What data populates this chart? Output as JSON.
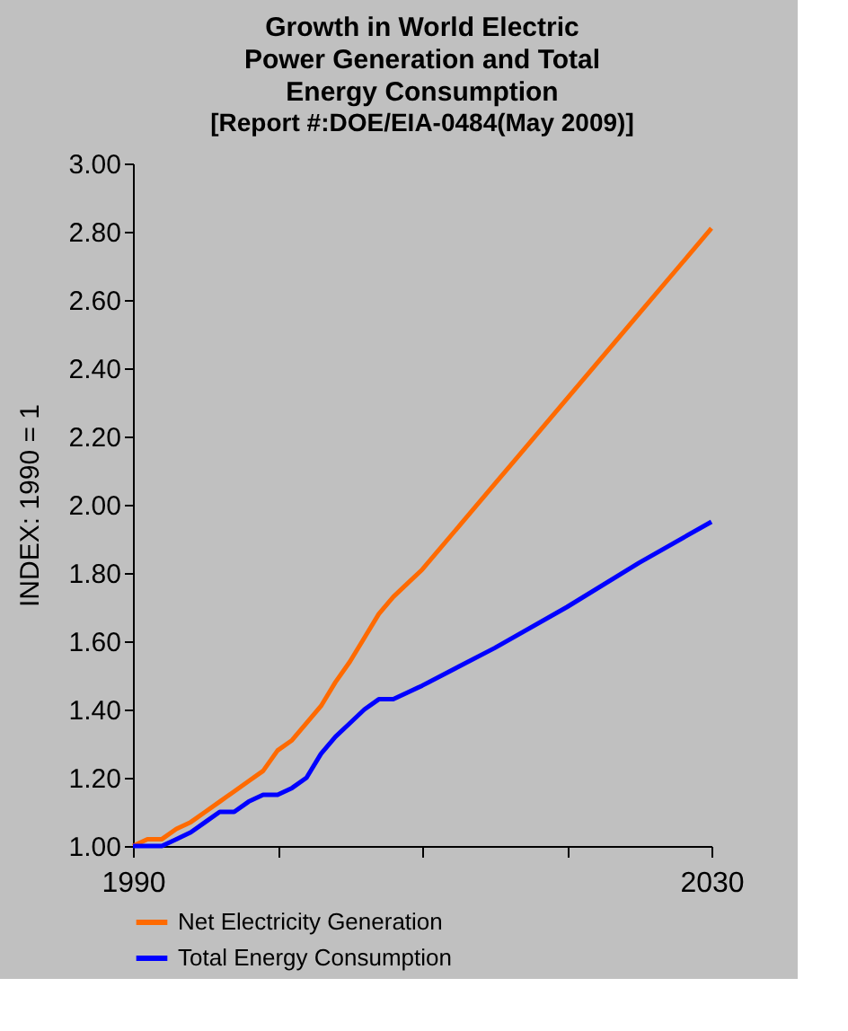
{
  "chart_data": {
    "type": "line",
    "title": "Growth in World Electric Power Generation and Total Energy Consumption",
    "subtitle": "[Report #:DOE/EIA-0484(May 2009)]",
    "ylabel": "INDEX: 1990 = 1",
    "x": [
      1990,
      1991,
      1992,
      1993,
      1994,
      1995,
      1996,
      1997,
      1998,
      1999,
      2000,
      2001,
      2002,
      2003,
      2004,
      2005,
      2006,
      2007,
      2008,
      2009,
      2010,
      2015,
      2020,
      2025,
      2030
    ],
    "series": [
      {
        "name": "Net Electricity Generation",
        "color": "#ff6a00",
        "values": [
          1.0,
          1.02,
          1.02,
          1.05,
          1.07,
          1.1,
          1.13,
          1.16,
          1.19,
          1.22,
          1.28,
          1.31,
          1.36,
          1.41,
          1.48,
          1.54,
          1.61,
          1.68,
          1.73,
          1.77,
          1.81,
          2.06,
          2.31,
          2.56,
          2.81
        ]
      },
      {
        "name": "Total Energy Consumption",
        "color": "#0000ff",
        "values": [
          1.0,
          1.0,
          1.0,
          1.02,
          1.04,
          1.07,
          1.1,
          1.1,
          1.13,
          1.15,
          1.15,
          1.17,
          1.2,
          1.27,
          1.32,
          1.36,
          1.4,
          1.43,
          1.43,
          1.45,
          1.47,
          1.58,
          1.7,
          1.83,
          1.95
        ]
      }
    ],
    "xlim": [
      1990,
      2030
    ],
    "xticks": [
      1990,
      {
        "value": 2000,
        "label": null
      },
      {
        "value": 2010,
        "label": null
      },
      {
        "value": 2020,
        "label": null
      },
      2030
    ],
    "ylim": [
      1.0,
      3.0
    ],
    "yticks": [
      {
        "value": 1.0,
        "label": "1.00"
      },
      {
        "value": 1.2,
        "label": "1.20"
      },
      {
        "value": 1.4,
        "label": "1.40"
      },
      {
        "value": 1.6,
        "label": "1.60"
      },
      {
        "value": 1.8,
        "label": "1.80"
      },
      {
        "value": 2.0,
        "label": "2.00"
      },
      {
        "value": 2.2,
        "label": "2.20"
      },
      {
        "value": 2.4,
        "label": "2.40"
      },
      {
        "value": 2.6,
        "label": "2.60"
      },
      {
        "value": 2.8,
        "label": "2.80"
      },
      {
        "value": 3.0,
        "label": "3.00"
      }
    ],
    "grid": false,
    "legend": "bottom",
    "marker": "none",
    "line_style": "solid"
  }
}
